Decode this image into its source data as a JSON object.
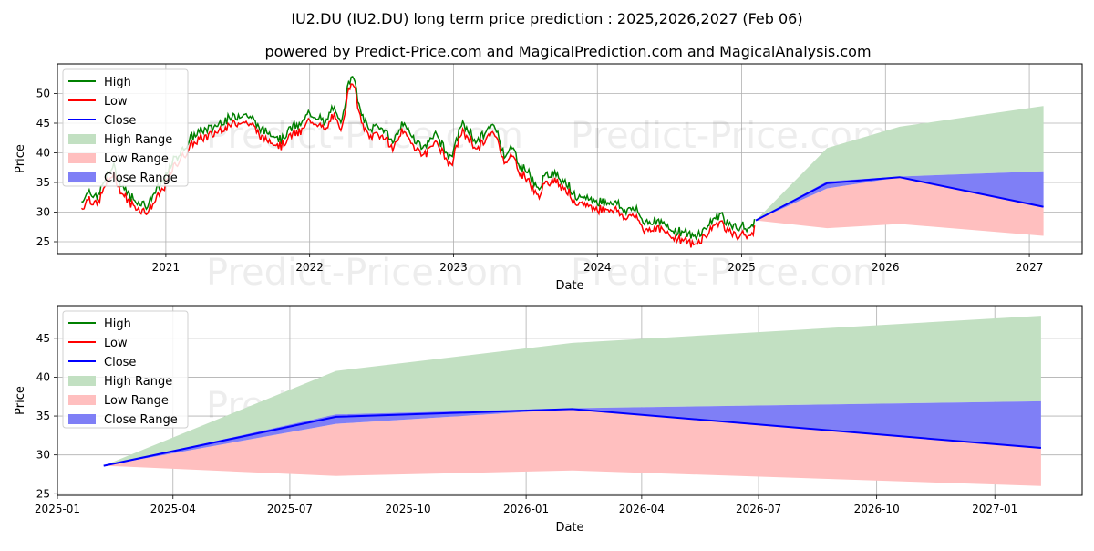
{
  "title": "IU2.DU (IU2.DU) long term price prediction : 2025,2026,2027 (Feb 06)",
  "subtitle": "powered by Predict-Price.com and MagicalPrediction.com and MagicalAnalysis.com",
  "watermark": "Predict-Price.com",
  "colors": {
    "high": "#008000",
    "low": "#ff0000",
    "close": "#0000ff",
    "high_range": "#c2e0c2",
    "low_range": "#ffbfbf",
    "close_range": "#7f7ff6"
  },
  "chart_data": [
    {
      "type": "line",
      "panel": "top",
      "xlabel": "Date",
      "ylabel": "Price",
      "x_ticks": [
        "2021",
        "2022",
        "2023",
        "2024",
        "2025",
        "2026",
        "2027"
      ],
      "y_ticks": [
        25,
        30,
        35,
        40,
        45,
        50
      ],
      "xlim": [
        "2020-04-01",
        "2027-05-15"
      ],
      "ylim": [
        23,
        55
      ],
      "grid": true,
      "legend": "top-left",
      "legend_entries": [
        "High",
        "Low",
        "Close",
        "High Range",
        "Low Range",
        "Close Range"
      ],
      "history": {
        "name": "High / Low",
        "dates": [
          "2020-06-01",
          "2020-06-20",
          "2020-07-10",
          "2020-08-01",
          "2020-08-20",
          "2020-09-10",
          "2020-10-01",
          "2020-10-25",
          "2020-11-15",
          "2020-12-10",
          "2020-12-31",
          "2021-01-20",
          "2021-02-15",
          "2021-03-10",
          "2021-04-01",
          "2021-05-01",
          "2021-05-20",
          "2021-06-15",
          "2021-07-15",
          "2021-08-10",
          "2021-09-01",
          "2021-10-01",
          "2021-10-20",
          "2021-11-15",
          "2021-12-10",
          "2022-01-01",
          "2022-01-20",
          "2022-02-10",
          "2022-03-01",
          "2022-03-20",
          "2022-04-10",
          "2022-04-20",
          "2022-05-10",
          "2022-06-01",
          "2022-06-20",
          "2022-07-10",
          "2022-08-01",
          "2022-08-20",
          "2022-09-10",
          "2022-10-01",
          "2022-10-20",
          "2022-11-10",
          "2022-12-01",
          "2022-12-25",
          "2023-01-20",
          "2023-02-10",
          "2023-03-01",
          "2023-03-20",
          "2023-04-15",
          "2023-05-10",
          "2023-06-01",
          "2023-06-20",
          "2023-07-10",
          "2023-08-01",
          "2023-08-20",
          "2023-09-10",
          "2023-10-01",
          "2023-10-20",
          "2023-11-10",
          "2023-12-01",
          "2023-12-25",
          "2024-01-20",
          "2024-02-15",
          "2024-03-10",
          "2024-04-01",
          "2024-05-01",
          "2024-06-01",
          "2024-07-01",
          "2024-08-01",
          "2024-09-01",
          "2024-10-01",
          "2024-10-20",
          "2024-11-10",
          "2024-12-01",
          "2024-12-20",
          "2025-01-10",
          "2025-01-25",
          "2025-02-06"
        ],
        "values": [
          31,
          33,
          31.5,
          35,
          37,
          34,
          32,
          31,
          30.5,
          33,
          35,
          38,
          40,
          42,
          43,
          43.5,
          44.5,
          45,
          46,
          45,
          43,
          42.5,
          41.5,
          43.5,
          44,
          46,
          45.5,
          44,
          47,
          44,
          51,
          53,
          46,
          43,
          44,
          43,
          41,
          44,
          43,
          41,
          40,
          42.5,
          41,
          38,
          44,
          43,
          41,
          42.5,
          44,
          39,
          40,
          37,
          36,
          33,
          35,
          36,
          35,
          34,
          31,
          32,
          31,
          31,
          31,
          29.5,
          30,
          27.5,
          28,
          26.5,
          26,
          25,
          26.5,
          28,
          29,
          27,
          26.5,
          27,
          26,
          28.5
        ]
      },
      "forecast": {
        "dates": [
          "2025-02-06",
          "2025-08-06",
          "2026-02-06",
          "2027-02-06"
        ],
        "close": [
          28.6,
          34.9,
          35.9,
          30.9
        ],
        "high_range_upper": [
          28.6,
          40.8,
          44.4,
          47.9
        ],
        "low_range_lower": [
          28.6,
          27.3,
          28.0,
          26.0
        ],
        "close_range_upper": [
          28.6,
          35.2,
          36.0,
          36.9
        ],
        "close_range_lower": [
          28.6,
          34.0,
          35.9,
          30.9
        ]
      }
    },
    {
      "type": "line",
      "panel": "bottom",
      "xlabel": "Date",
      "ylabel": "Price",
      "x_ticks": [
        "2025-01",
        "2025-04",
        "2025-07",
        "2025-10",
        "2026-01",
        "2026-04",
        "2026-07",
        "2026-10",
        "2027-01"
      ],
      "y_ticks": [
        25,
        30,
        35,
        40,
        45
      ],
      "xlim": [
        "2025-01-01",
        "2027-03-10"
      ],
      "ylim": [
        24.8,
        49.2
      ],
      "grid": true,
      "legend": "top-left",
      "legend_entries": [
        "High",
        "Low",
        "Close",
        "High Range",
        "Low Range",
        "Close Range"
      ],
      "forecast": {
        "dates": [
          "2025-02-06",
          "2025-08-06",
          "2026-02-06",
          "2027-02-06"
        ],
        "close": [
          28.6,
          34.9,
          35.9,
          30.9
        ],
        "high_range_upper": [
          28.6,
          40.8,
          44.4,
          47.9
        ],
        "low_range_lower": [
          28.6,
          27.3,
          28.0,
          26.0
        ],
        "close_range_upper": [
          28.6,
          35.2,
          36.0,
          36.9
        ],
        "close_range_lower": [
          28.6,
          34.0,
          35.9,
          30.9
        ]
      }
    }
  ]
}
